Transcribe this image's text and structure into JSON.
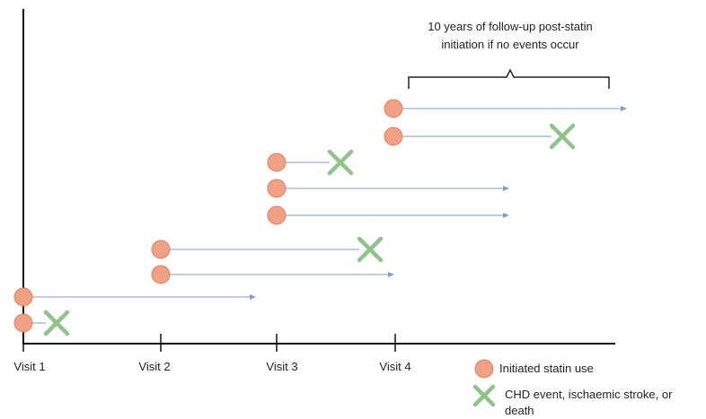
{
  "visits": [
    "Visit 1",
    "Visit 2",
    "Visit 3",
    "Visit 4"
  ],
  "callout": {
    "line1": "10 years of follow-up post-statin",
    "line2": "initiation if no events occur"
  },
  "legend": {
    "statin": "Initiated statin use",
    "event_line1": "CHD event, ischaemic stroke, or",
    "event_line2": "death"
  },
  "colors": {
    "statin": "#f0a085",
    "statin_border": "#e07f5f",
    "event": "#8fc38a",
    "arrow": "#7f9fc8",
    "axis": "#111111"
  },
  "participants": [
    {
      "visit": 1,
      "outcome": "event"
    },
    {
      "visit": 1,
      "outcome": "censored"
    },
    {
      "visit": 2,
      "outcome": "censored"
    },
    {
      "visit": 2,
      "outcome": "event"
    },
    {
      "visit": 3,
      "outcome": "censored"
    },
    {
      "visit": 3,
      "outcome": "censored"
    },
    {
      "visit": 3,
      "outcome": "event"
    },
    {
      "visit": 4,
      "outcome": "event"
    },
    {
      "visit": 4,
      "outcome": "censored"
    }
  ]
}
